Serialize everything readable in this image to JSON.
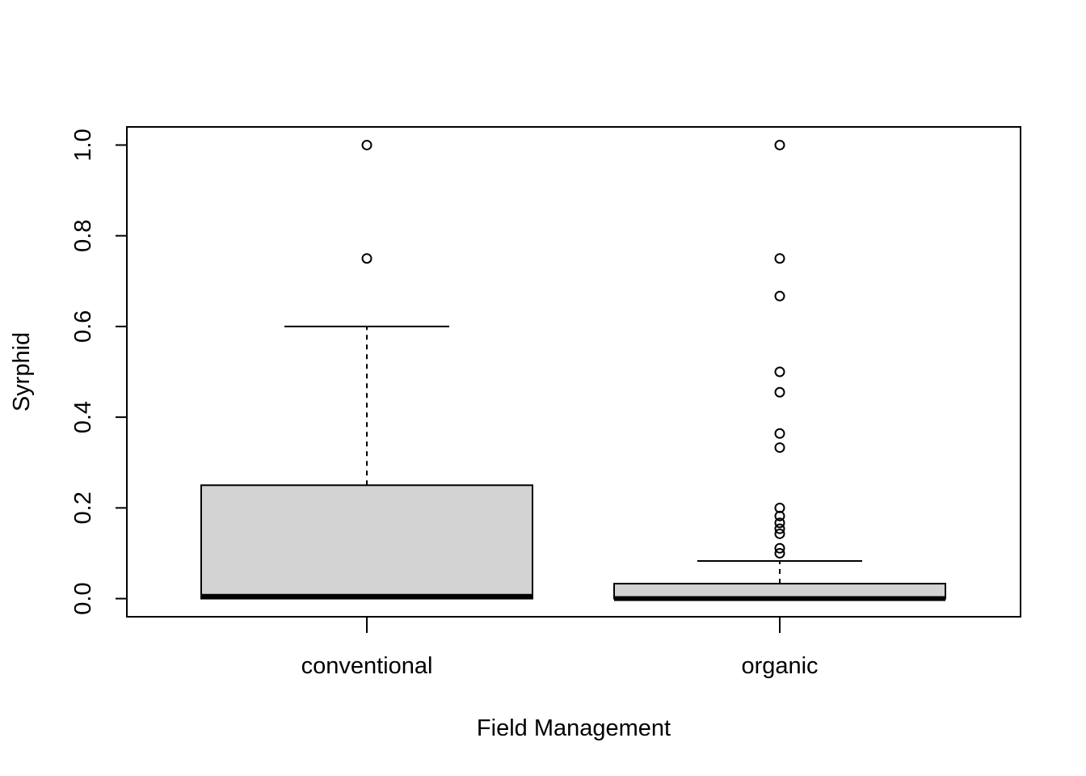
{
  "chart_data": {
    "type": "boxplot",
    "title": "",
    "xlabel": "Field Management",
    "ylabel": "Syrphid",
    "ylim": [
      -0.04,
      1.04
    ],
    "y_ticks": [
      "0.0",
      "0.2",
      "0.4",
      "0.6",
      "0.8",
      "1.0"
    ],
    "y_tick_values": [
      0.0,
      0.2,
      0.4,
      0.6,
      0.8,
      1.0
    ],
    "grid": false,
    "legend": "none",
    "box_fill": "#d3d3d3",
    "categories": [
      "conventional",
      "organic"
    ],
    "boxes": [
      {
        "category": "conventional",
        "whisker_low": 0.0,
        "q1": 0.0,
        "median": 0.005,
        "q3": 0.25,
        "whisker_high": 0.6,
        "outliers": [
          0.75,
          1.0
        ]
      },
      {
        "category": "organic",
        "whisker_low": 0.0,
        "q1": 0.0,
        "median": 0.0,
        "q3": 0.033,
        "whisker_high": 0.083,
        "outliers": [
          0.1,
          0.111,
          0.143,
          0.154,
          0.167,
          0.182,
          0.2,
          0.333,
          0.364,
          0.455,
          0.5,
          0.667,
          0.75,
          1.0
        ]
      }
    ]
  }
}
